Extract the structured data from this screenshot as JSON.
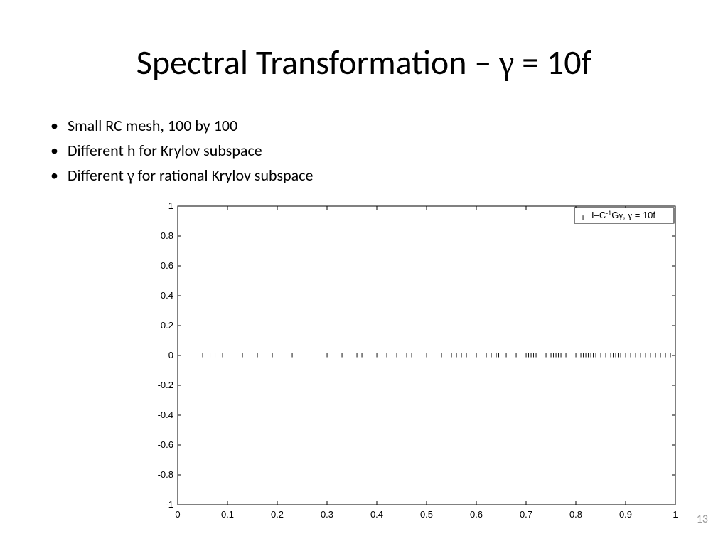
{
  "title_html": "Spectral Transformation – <span style='font-family:Symbol,serif'>γ</span> = 10f",
  "bullets": [
    "Small RC mesh, 100 by 100",
    "Different h for Krylov subspace"
  ],
  "bullet3_html": "Different <span style='font-family:Symbol,serif'>γ</span> for rational Krylov subspace",
  "page_number": "13",
  "chart": {
    "type": "scatter",
    "xlim": [
      0,
      1
    ],
    "ylim": [
      -1,
      1
    ],
    "xticks": [
      0,
      0.1,
      0.2,
      0.3,
      0.4,
      0.5,
      0.6,
      0.7,
      0.8,
      0.9,
      1
    ],
    "yticks": [
      -1,
      -0.8,
      -0.6,
      -0.4,
      -0.2,
      0,
      0.2,
      0.4,
      0.6,
      0.8,
      1
    ],
    "xtick_labels": [
      "0",
      "0.1",
      "0.2",
      "0.3",
      "0.4",
      "0.5",
      "0.6",
      "0.7",
      "0.8",
      "0.9",
      "1"
    ],
    "ytick_labels": [
      "-1",
      "-0.8",
      "-0.6",
      "-0.4",
      "-0.2",
      "0",
      "0.2",
      "0.4",
      "0.6",
      "0.8",
      "1"
    ],
    "marker_symbol": "+",
    "marker_color": "#000000",
    "marker_fontsize": 13,
    "background_color": "#ffffff",
    "border_color": "#000000",
    "tick_fontsize": 13,
    "legend": {
      "marker": "+",
      "text_html": "I–C<tspan baseline-shift='4' font-size='9'>-1</tspan>G<tspan font-family='serif'>γ</tspan>, <tspan font-family='serif'>γ</tspan> = 10f",
      "position": "top-right"
    },
    "x_values": [
      0.05,
      0.065,
      0.075,
      0.085,
      0.09,
      0.13,
      0.16,
      0.19,
      0.23,
      0.3,
      0.33,
      0.36,
      0.37,
      0.4,
      0.42,
      0.44,
      0.46,
      0.47,
      0.5,
      0.53,
      0.55,
      0.56,
      0.565,
      0.57,
      0.58,
      0.585,
      0.6,
      0.62,
      0.63,
      0.64,
      0.645,
      0.66,
      0.68,
      0.7,
      0.705,
      0.71,
      0.715,
      0.72,
      0.74,
      0.75,
      0.755,
      0.76,
      0.765,
      0.77,
      0.78,
      0.8,
      0.81,
      0.815,
      0.82,
      0.825,
      0.83,
      0.835,
      0.84,
      0.85,
      0.86,
      0.87,
      0.875,
      0.88,
      0.885,
      0.89,
      0.9,
      0.905,
      0.91,
      0.915,
      0.92,
      0.925,
      0.93,
      0.935,
      0.94,
      0.945,
      0.95,
      0.955,
      0.96,
      0.965,
      0.97,
      0.975,
      0.98,
      0.985,
      0.99,
      0.995
    ],
    "y_value": 0
  }
}
